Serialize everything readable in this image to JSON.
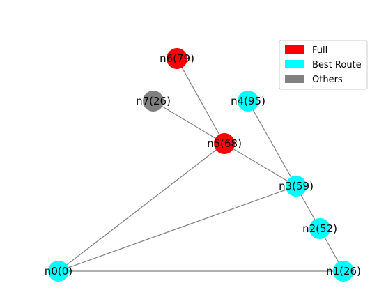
{
  "graph": {
    "nodes": [
      {
        "id": "n0",
        "label": "n0(0)",
        "status": "best"
      },
      {
        "id": "n1",
        "label": "n1(26)",
        "status": "best"
      },
      {
        "id": "n2",
        "label": "n2(52)",
        "status": "best"
      },
      {
        "id": "n3",
        "label": "n3(59)",
        "status": "best"
      },
      {
        "id": "n4",
        "label": "n4(95)",
        "status": "best"
      },
      {
        "id": "n5",
        "label": "n5(68)",
        "status": "full"
      },
      {
        "id": "n6",
        "label": "n6(79)",
        "status": "full"
      },
      {
        "id": "n7",
        "label": "n7(26)",
        "status": "other"
      }
    ],
    "edges": [
      [
        "n0",
        "n1"
      ],
      [
        "n0",
        "n3"
      ],
      [
        "n0",
        "n5"
      ],
      [
        "n1",
        "n2"
      ],
      [
        "n2",
        "n3"
      ],
      [
        "n3",
        "n4"
      ],
      [
        "n3",
        "n5"
      ],
      [
        "n5",
        "n6"
      ],
      [
        "n5",
        "n7"
      ]
    ]
  },
  "legend": {
    "full_label": "Full",
    "best_label": "Best Route",
    "others_label": "Others"
  },
  "colors": {
    "full": "#ff0000",
    "best": "#00ffff",
    "other": "#808080",
    "edge": "#808080"
  }
}
